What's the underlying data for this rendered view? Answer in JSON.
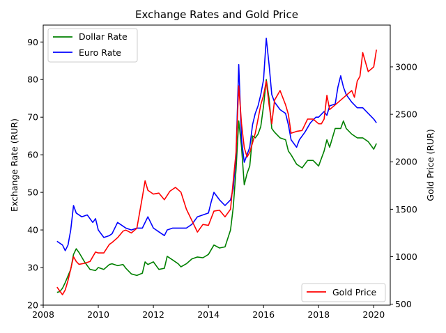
{
  "chart_data": {
    "type": "line",
    "title": "Exchange Rates and Gold Price",
    "xlabel": "",
    "ylabel": "Exchange Rate (RUR)",
    "y2label": "Gold Price (RUR)",
    "xlim": [
      2008.0,
      2020.6
    ],
    "ylim": [
      20,
      94.5
    ],
    "y2lim": [
      490,
      3440
    ],
    "x_ticks": [
      2008,
      2010,
      2012,
      2014,
      2016,
      2018,
      2020
    ],
    "y_ticks": [
      20,
      30,
      40,
      50,
      60,
      70,
      80,
      90
    ],
    "y2_ticks": [
      500,
      1000,
      1500,
      2000,
      2500,
      3000
    ],
    "grid": false,
    "legend_left": {
      "placement": "top-left",
      "entries": [
        {
          "name": "Dollar Rate",
          "color": "#008000"
        },
        {
          "name": "Euro Rate",
          "color": "#0000ff"
        }
      ]
    },
    "legend_right": {
      "placement": "bottom-right",
      "entries": [
        {
          "name": "Gold Price",
          "color": "#ff0000"
        }
      ]
    },
    "series": [
      {
        "name": "Dollar Rate",
        "axis": "left",
        "color": "#008000",
        "x": [
          2008.5,
          2008.6,
          2008.7,
          2008.8,
          2008.9,
          2009.0,
          2009.1,
          2009.2,
          2009.3,
          2009.5,
          2009.7,
          2009.9,
          2010.0,
          2010.2,
          2010.4,
          2010.5,
          2010.7,
          2010.9,
          2011.0,
          2011.2,
          2011.4,
          2011.6,
          2011.7,
          2011.8,
          2012.0,
          2012.2,
          2012.4,
          2012.5,
          2012.7,
          2012.9,
          2013.0,
          2013.2,
          2013.4,
          2013.6,
          2013.8,
          2014.0,
          2014.2,
          2014.4,
          2014.6,
          2014.8,
          2014.9,
          2015.0,
          2015.1,
          2015.2,
          2015.3,
          2015.4,
          2015.5,
          2015.6,
          2015.7,
          2015.8,
          2015.9,
          2016.0,
          2016.1,
          2016.2,
          2016.3,
          2016.4,
          2016.6,
          2016.8,
          2016.9,
          2017.0,
          2017.2,
          2017.4,
          2017.6,
          2017.8,
          2018.0,
          2018.2,
          2018.3,
          2018.4,
          2018.6,
          2018.8,
          2018.9,
          2019.0,
          2019.2,
          2019.4,
          2019.6,
          2019.8,
          2020.0,
          2020.1
        ],
        "values": [
          23.4,
          23.6,
          24.5,
          26.0,
          27.8,
          29.5,
          33.5,
          35.0,
          34.0,
          31.5,
          29.5,
          29.2,
          30.0,
          29.5,
          30.8,
          31.0,
          30.5,
          30.8,
          29.8,
          28.3,
          27.9,
          28.5,
          31.5,
          30.8,
          31.5,
          29.5,
          29.8,
          33.0,
          32.0,
          31.0,
          30.2,
          31.0,
          32.3,
          32.8,
          32.6,
          33.5,
          36.0,
          35.2,
          35.5,
          40.0,
          46.0,
          56.0,
          69.0,
          62.0,
          52.0,
          55.0,
          57.0,
          65.0,
          64.5,
          65.5,
          67.5,
          73.0,
          80.0,
          75.0,
          67.0,
          66.0,
          64.5,
          64.0,
          61.0,
          60.0,
          57.5,
          56.5,
          58.5,
          58.5,
          57.0,
          61.0,
          64.0,
          62.0,
          67.0,
          67.0,
          69.0,
          67.0,
          65.5,
          64.5,
          64.5,
          63.5,
          61.5,
          63.0
        ]
      },
      {
        "name": "Euro Rate",
        "axis": "left",
        "color": "#0000ff",
        "x": [
          2008.5,
          2008.6,
          2008.7,
          2008.8,
          2008.9,
          2009.0,
          2009.1,
          2009.2,
          2009.4,
          2009.6,
          2009.8,
          2009.9,
          2010.0,
          2010.2,
          2010.4,
          2010.5,
          2010.7,
          2010.9,
          2011.0,
          2011.2,
          2011.4,
          2011.6,
          2011.8,
          2012.0,
          2012.2,
          2012.4,
          2012.5,
          2012.7,
          2012.9,
          2013.0,
          2013.2,
          2013.4,
          2013.6,
          2013.8,
          2014.0,
          2014.1,
          2014.2,
          2014.4,
          2014.6,
          2014.8,
          2014.9,
          2015.0,
          2015.1,
          2015.2,
          2015.3,
          2015.4,
          2015.5,
          2015.6,
          2015.7,
          2015.8,
          2015.9,
          2016.0,
          2016.1,
          2016.2,
          2016.3,
          2016.4,
          2016.6,
          2016.8,
          2016.9,
          2017.0,
          2017.2,
          2017.3,
          2017.5,
          2017.7,
          2017.9,
          2018.0,
          2018.2,
          2018.3,
          2018.4,
          2018.6,
          2018.7,
          2018.8,
          2018.9,
          2019.0,
          2019.2,
          2019.4,
          2019.6,
          2019.8,
          2020.0,
          2020.1
        ],
        "values": [
          37.0,
          36.5,
          36.0,
          34.5,
          36.0,
          40.0,
          46.5,
          44.5,
          43.5,
          44.0,
          42.0,
          43.0,
          40.0,
          38.0,
          38.5,
          39.0,
          42.0,
          41.0,
          40.5,
          40.0,
          40.5,
          40.5,
          43.5,
          40.5,
          39.5,
          38.5,
          40.0,
          40.5,
          40.5,
          40.5,
          40.5,
          41.5,
          43.5,
          44.0,
          44.5,
          47.5,
          50.0,
          48.0,
          46.5,
          48.0,
          51.0,
          60.0,
          84.0,
          64.0,
          58.0,
          60.0,
          62.0,
          68.0,
          71.0,
          73.0,
          76.0,
          80.0,
          91.0,
          84.0,
          76.0,
          74.0,
          72.0,
          71.0,
          68.0,
          64.0,
          62.0,
          64.0,
          66.0,
          68.5,
          70.0,
          70.0,
          71.5,
          70.5,
          73.0,
          73.5,
          78.0,
          81.0,
          78.0,
          76.0,
          74.0,
          72.5,
          72.5,
          71.0,
          69.5,
          68.5
        ]
      },
      {
        "name": "Gold Price",
        "axis": "right",
        "color": "#ff0000",
        "x": [
          2008.5,
          2008.6,
          2008.7,
          2008.8,
          2008.9,
          2009.0,
          2009.1,
          2009.2,
          2009.3,
          2009.5,
          2009.7,
          2009.9,
          2010.0,
          2010.2,
          2010.4,
          2010.5,
          2010.7,
          2010.9,
          2011.0,
          2011.2,
          2011.4,
          2011.6,
          2011.7,
          2011.8,
          2012.0,
          2012.2,
          2012.4,
          2012.6,
          2012.8,
          2013.0,
          2013.2,
          2013.4,
          2013.6,
          2013.8,
          2014.0,
          2014.2,
          2014.4,
          2014.6,
          2014.8,
          2014.9,
          2015.0,
          2015.1,
          2015.2,
          2015.3,
          2015.4,
          2015.5,
          2015.6,
          2015.7,
          2015.8,
          2015.9,
          2016.0,
          2016.1,
          2016.2,
          2016.3,
          2016.4,
          2016.5,
          2016.6,
          2016.8,
          2016.9,
          2017.0,
          2017.2,
          2017.4,
          2017.6,
          2017.8,
          2018.0,
          2018.1,
          2018.2,
          2018.3,
          2018.4,
          2018.6,
          2018.8,
          2019.0,
          2019.2,
          2019.3,
          2019.4,
          2019.5,
          2019.6,
          2019.7,
          2019.8,
          2020.0,
          2020.1
        ],
        "values": [
          680,
          640,
          600,
          650,
          750,
          870,
          1000,
          950,
          920,
          930,
          950,
          1050,
          1040,
          1040,
          1130,
          1150,
          1200,
          1270,
          1280,
          1250,
          1300,
          1630,
          1800,
          1700,
          1660,
          1670,
          1600,
          1690,
          1730,
          1680,
          1500,
          1380,
          1260,
          1340,
          1330,
          1480,
          1490,
          1420,
          1500,
          1800,
          2100,
          2800,
          2400,
          2150,
          2050,
          2100,
          2200,
          2300,
          2450,
          2600,
          2700,
          2850,
          2600,
          2400,
          2650,
          2700,
          2750,
          2600,
          2500,
          2300,
          2320,
          2330,
          2450,
          2450,
          2400,
          2400,
          2450,
          2700,
          2550,
          2600,
          2650,
          2700,
          2750,
          2680,
          2850,
          2900,
          3150,
          3050,
          2950,
          3000,
          3180
        ]
      }
    ]
  }
}
